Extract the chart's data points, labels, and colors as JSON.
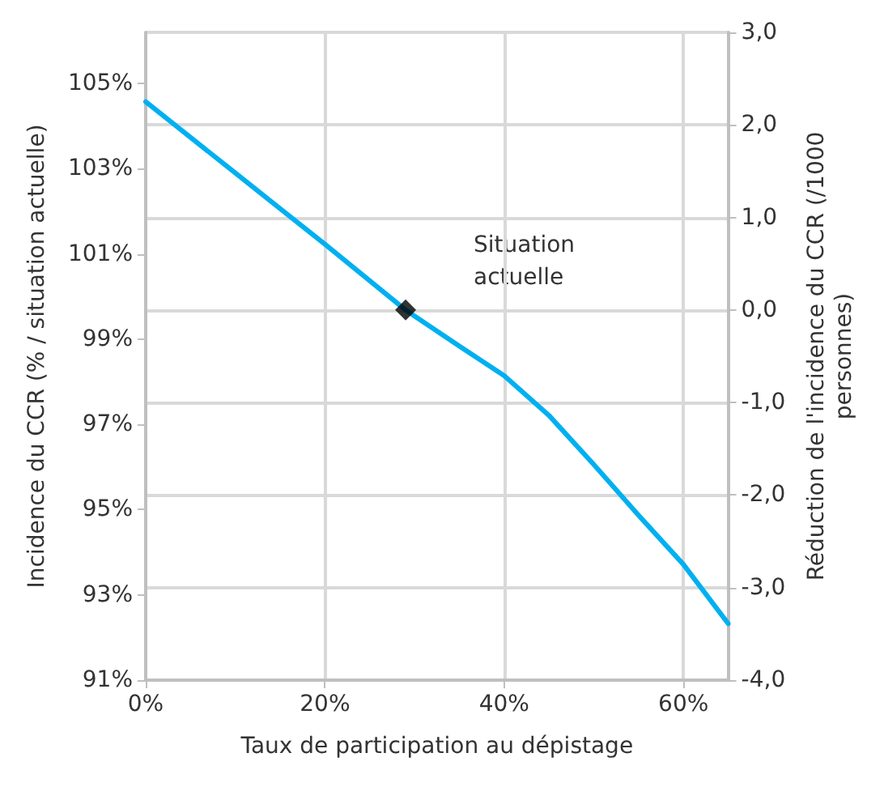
{
  "chart_data": {
    "type": "line",
    "xlabel": "Taux de participation au dépistage",
    "ylabel": "Incidence du CCR (% / situation actuelle)",
    "y2label": "Réduction de l'incidence du CCR (/1000 personnes)",
    "xlim": [
      0,
      65
    ],
    "xticks": [
      {
        "value": 0,
        "label": "0%"
      },
      {
        "value": 20,
        "label": "20%"
      },
      {
        "value": 40,
        "label": "40%"
      },
      {
        "value": 60,
        "label": "60%"
      }
    ],
    "ylim": [
      91,
      106.2
    ],
    "yticks": [
      {
        "value": 91,
        "label": "91%"
      },
      {
        "value": 93,
        "label": "93%"
      },
      {
        "value": 95,
        "label": "95%"
      },
      {
        "value": 97,
        "label": "97%"
      },
      {
        "value": 99,
        "label": "99%"
      },
      {
        "value": 101,
        "label": "101%"
      },
      {
        "value": 103,
        "label": "103%"
      },
      {
        "value": 105,
        "label": "105%"
      }
    ],
    "y2lim": [
      -4,
      3
    ],
    "y2ticks": [
      {
        "value": -4,
        "label": "-4,0"
      },
      {
        "value": -3,
        "label": "-3,0"
      },
      {
        "value": -2,
        "label": "-2,0"
      },
      {
        "value": -1,
        "label": "-1,0"
      },
      {
        "value": 0,
        "label": "0,0"
      },
      {
        "value": 1,
        "label": "1,0"
      },
      {
        "value": 2,
        "label": "2,0"
      },
      {
        "value": 3,
        "label": "3,0"
      }
    ],
    "grid": true,
    "marker": "none",
    "line_style": "solid",
    "series": [
      {
        "axis": "y2",
        "color": "#00b0f0",
        "x": [
          0,
          10,
          20,
          29,
          35,
          40,
          45,
          50,
          55,
          60,
          65
        ],
        "values": [
          2.25,
          1.48,
          0.71,
          0.0,
          -0.39,
          -0.71,
          -1.14,
          -1.67,
          -2.22,
          -2.75,
          -3.39
        ]
      },
      {
        "type": "scatter",
        "axis": "y2",
        "color": "#000000",
        "marker": "diamond",
        "x": [
          29
        ],
        "values": [
          0.0
        ]
      }
    ],
    "annotations": [
      "Situation actuelle"
    ]
  }
}
